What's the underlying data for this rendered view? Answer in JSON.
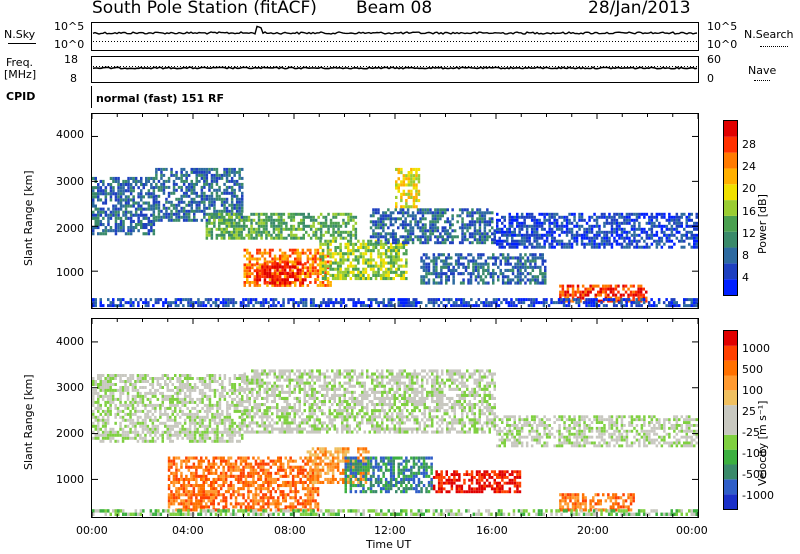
{
  "header": {
    "station": "South Pole Station (fitACF)",
    "beam": "Beam 08",
    "date": "28/Jan/2013"
  },
  "top_panels": {
    "nsky_label": "N.Sky",
    "nsky_ticks": [
      "10^5",
      "10^0"
    ],
    "nsearch_label": "N.Search",
    "nsearch_ticks": [
      "10^5",
      "10^0"
    ],
    "freq_label": "Freq.",
    "freq_unit": "[MHz]",
    "freq_ticks": [
      "18",
      "8"
    ],
    "nave_label": "Nave",
    "nave_ticks": [
      "60",
      "0"
    ],
    "cpid_label": "CPID",
    "cpid_text": "normal (fast) 151 RF"
  },
  "chart_data": [
    {
      "type": "heatmap",
      "ylabel": "Slant Range [km]",
      "xlabel": "Time UT",
      "yticks": [
        "4000",
        "3000",
        "2000",
        "1000"
      ],
      "ylim": [
        180,
        4500
      ],
      "xticks": [
        "00:00",
        "04:00",
        "08:00",
        "12:00",
        "16:00",
        "20:00",
        "00:00"
      ],
      "colorbar": {
        "label": "Power [dB]",
        "ticks": [
          "28",
          "24",
          "20",
          "16",
          "12",
          "8",
          "4"
        ],
        "colors": [
          "#0020ff",
          "#1e40c0",
          "#2d6aa0",
          "#3a8a6a",
          "#4aa050",
          "#9acd32",
          "#f0e000",
          "#ffb000",
          "#ff7a00",
          "#ff3000",
          "#e00000"
        ]
      },
      "regions": [
        {
          "t0": 0.0,
          "t1": 2.5,
          "r0": 1800,
          "r1": 3100,
          "level": 2
        },
        {
          "t0": 2.5,
          "t1": 6.0,
          "r0": 2100,
          "r1": 3300,
          "level": 2
        },
        {
          "t0": 4.5,
          "t1": 10.5,
          "r0": 1700,
          "r1": 2300,
          "level": 4
        },
        {
          "t0": 6.0,
          "t1": 9.5,
          "r0": 650,
          "r1": 1500,
          "level": 8
        },
        {
          "t0": 6.5,
          "t1": 8.5,
          "r0": 700,
          "r1": 1200,
          "level": 10
        },
        {
          "t0": 9.0,
          "t1": 12.5,
          "r0": 800,
          "r1": 1700,
          "level": 5
        },
        {
          "t0": 12.0,
          "t1": 13.0,
          "r0": 2400,
          "r1": 3300,
          "level": 6
        },
        {
          "t0": 11.0,
          "t1": 16.0,
          "r0": 1600,
          "r1": 2400,
          "level": 2
        },
        {
          "t0": 13.0,
          "t1": 18.0,
          "r0": 700,
          "r1": 1400,
          "level": 2
        },
        {
          "t0": 16.0,
          "t1": 24.0,
          "r0": 1500,
          "r1": 2300,
          "level": 1
        },
        {
          "t0": 18.5,
          "t1": 22.0,
          "r0": 300,
          "r1": 700,
          "level": 9
        },
        {
          "t0": 0.0,
          "t1": 24.0,
          "r0": 200,
          "r1": 400,
          "level": 1
        }
      ]
    },
    {
      "type": "heatmap",
      "ylabel": "Slant Range [km]",
      "xlabel": "Time UT",
      "yticks": [
        "4000",
        "3000",
        "2000",
        "1000"
      ],
      "ylim": [
        180,
        4500
      ],
      "xticks": [
        "00:00",
        "04:00",
        "08:00",
        "12:00",
        "16:00",
        "20:00",
        "00:00"
      ],
      "colorbar": {
        "label": "Velocity [m s⁻¹]",
        "ticks": [
          "1000",
          "500",
          "100",
          "25",
          "-25",
          "-100",
          "-500",
          "-1000"
        ],
        "colors": [
          "#1a30c8",
          "#2f5ec8",
          "#3a8a6a",
          "#3cb040",
          "#7fd040",
          "#c8c8c0",
          "#c8c8c0",
          "#f0c060",
          "#ff9a30",
          "#ff7000",
          "#ff4000",
          "#e00000"
        ]
      },
      "regions": [
        {
          "t0": 0.0,
          "t1": 6.0,
          "r0": 1800,
          "r1": 3300,
          "level": 5
        },
        {
          "t0": 6.0,
          "t1": 16.0,
          "r0": 2000,
          "r1": 3400,
          "level": 5
        },
        {
          "t0": 16.0,
          "t1": 24.0,
          "r0": 1700,
          "r1": 2400,
          "level": 5
        },
        {
          "t0": 3.0,
          "t1": 9.0,
          "r0": 300,
          "r1": 1500,
          "level": 9
        },
        {
          "t0": 8.5,
          "t1": 11.0,
          "r0": 900,
          "r1": 1700,
          "level": 8
        },
        {
          "t0": 10.0,
          "t1": 13.5,
          "r0": 700,
          "r1": 1500,
          "level": 2
        },
        {
          "t0": 13.5,
          "t1": 17.0,
          "r0": 700,
          "r1": 1200,
          "level": 11
        },
        {
          "t0": 18.5,
          "t1": 21.5,
          "r0": 300,
          "r1": 700,
          "level": 9
        },
        {
          "t0": 0.0,
          "t1": 24.0,
          "r0": 200,
          "r1": 350,
          "level": 4
        }
      ]
    }
  ]
}
